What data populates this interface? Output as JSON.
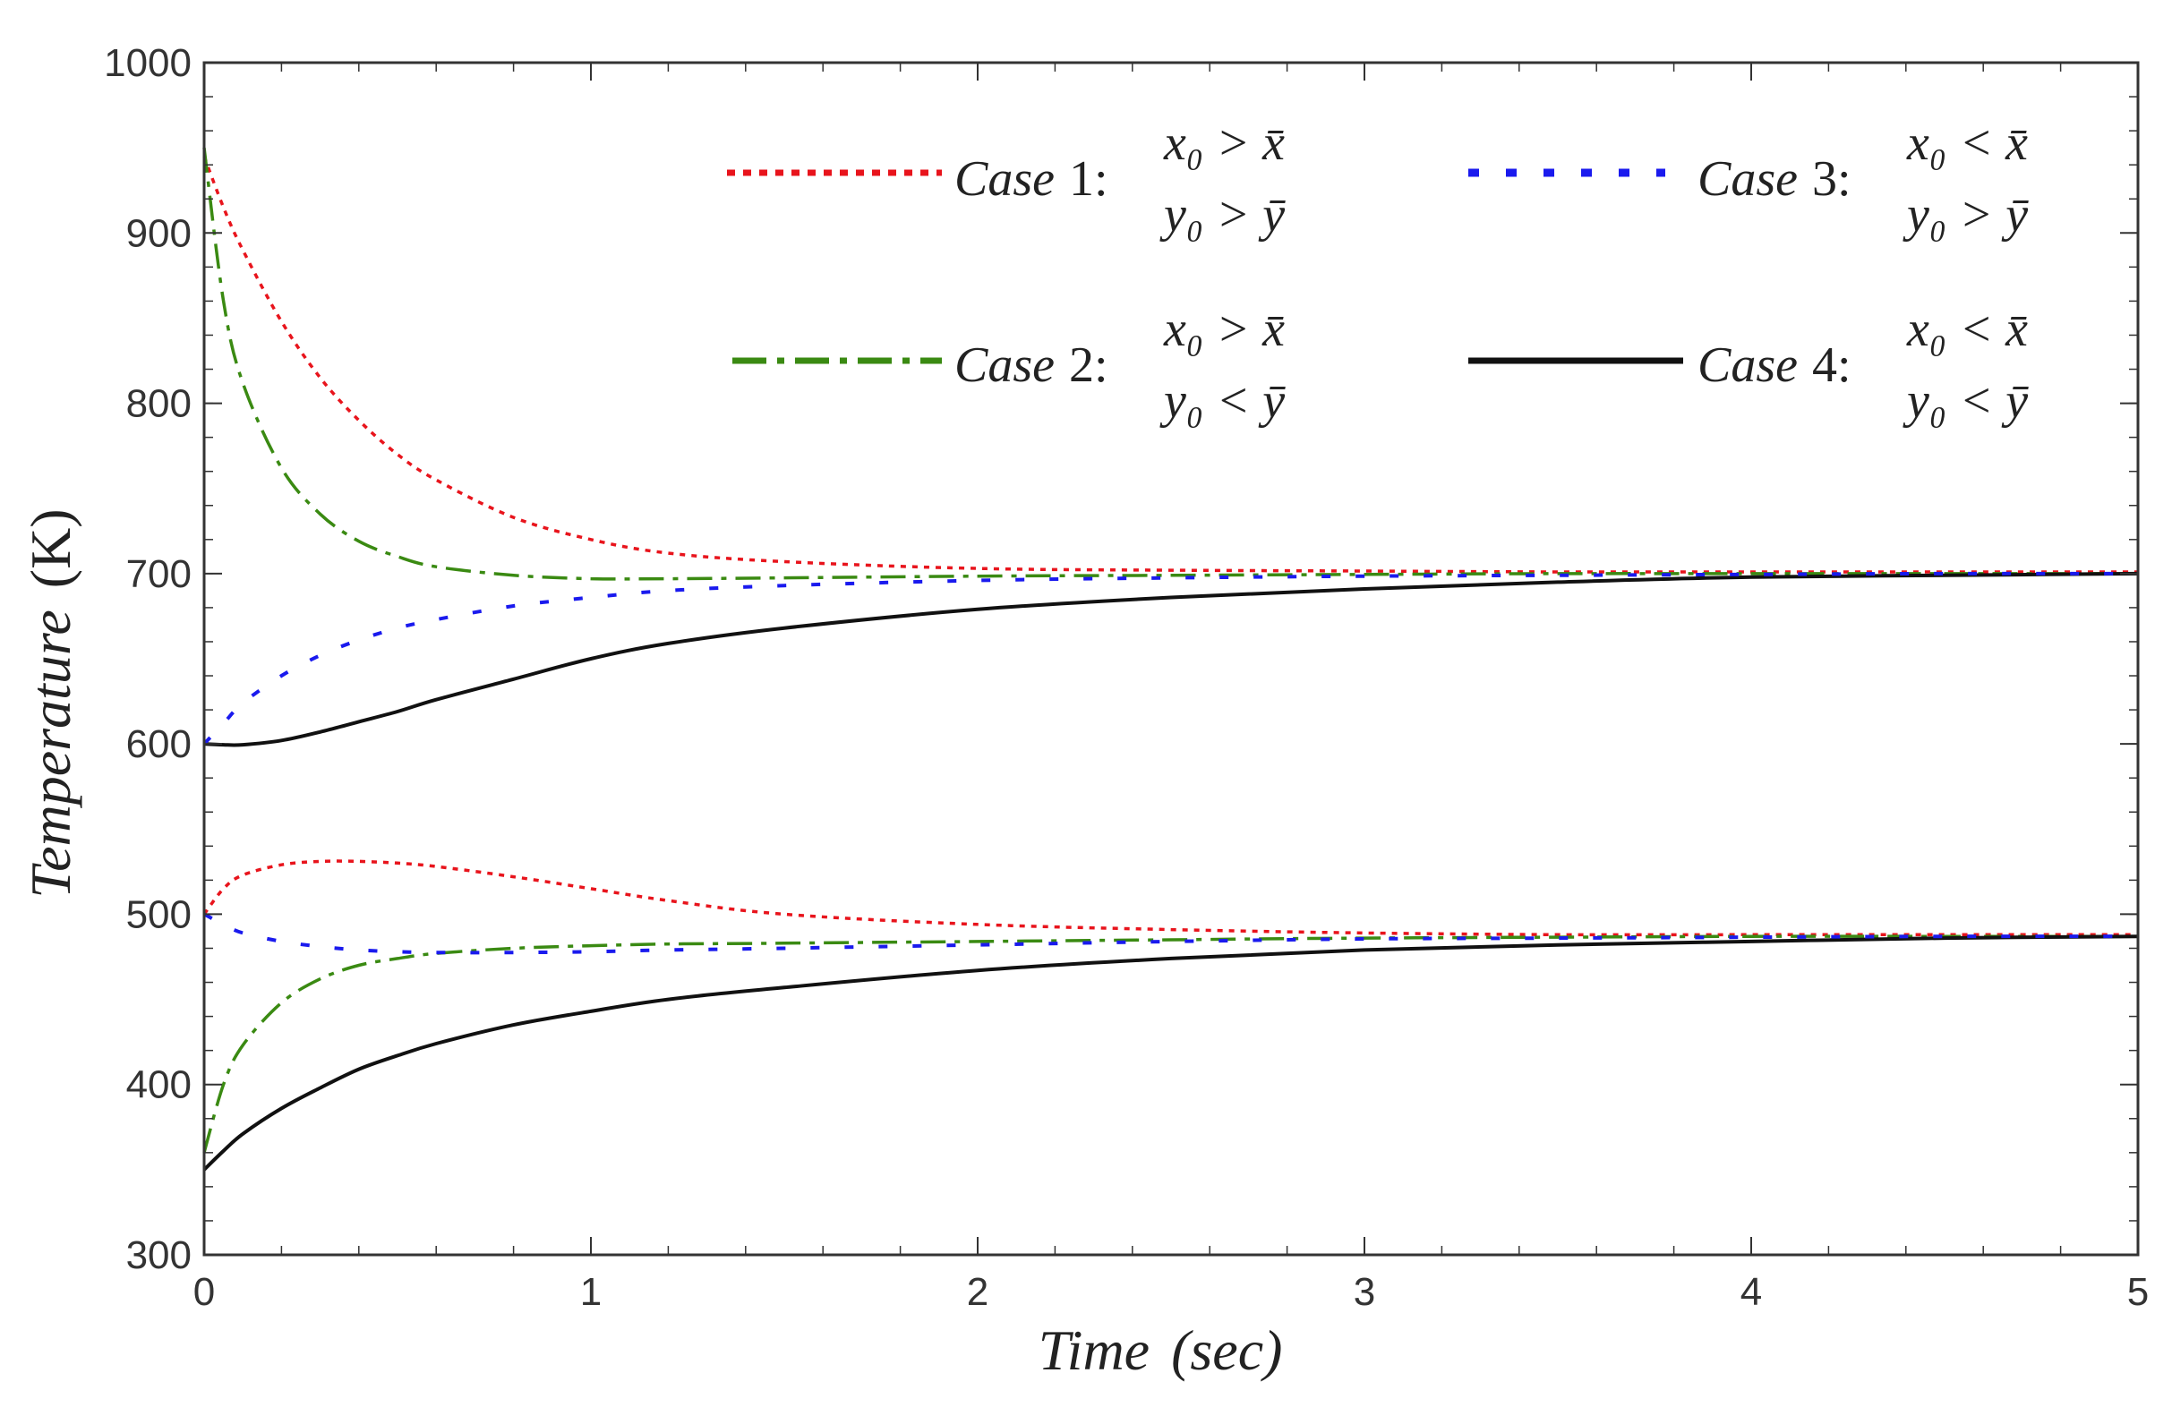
{
  "chart_data": {
    "type": "line",
    "title": "",
    "xlabel": "Time",
    "xlabel_unit": "(sec)",
    "ylabel": "Temperature",
    "ylabel_unit": "(K)",
    "xlim": [
      0,
      5
    ],
    "ylim": [
      300,
      1000
    ],
    "xticks": [
      "0",
      "1",
      "2",
      "3",
      "4",
      "5"
    ],
    "yticks": [
      "300",
      "400",
      "500",
      "600",
      "700",
      "800",
      "900",
      "1000"
    ],
    "grid": false,
    "legend_position": "top-right",
    "colors": {
      "case1": "#e8141c",
      "case2": "#3a8a12",
      "case3": "#1a1aee",
      "case4": "#111111"
    },
    "legend": [
      {
        "label_italic": "Case",
        "label_num": "1:",
        "cond_x": "x₀ > x̄",
        "cond_y": "y₀ > ȳ"
      },
      {
        "label_italic": "Case",
        "label_num": "2:",
        "cond_x": "x₀ > x̄",
        "cond_y": "y₀ < ȳ"
      },
      {
        "label_italic": "Case",
        "label_num": "3:",
        "cond_x": "x₀ < x̄",
        "cond_y": "y₀ > ȳ"
      },
      {
        "label_italic": "Case",
        "label_num": "4:",
        "cond_x": "x₀ < x̄",
        "cond_y": "y₀ < ȳ"
      }
    ],
    "x": [
      0,
      0.05,
      0.1,
      0.2,
      0.3,
      0.4,
      0.5,
      0.6,
      0.8,
      1.0,
      1.2,
      1.5,
      2.0,
      2.5,
      3.0,
      3.5,
      4.0,
      4.5,
      5.0
    ],
    "series": [
      {
        "name": "Case 1 upper",
        "case": 1,
        "values": [
          945,
          915,
          890,
          848,
          815,
          790,
          770,
          755,
          733,
          720,
          712,
          707,
          703,
          702,
          701.5,
          701,
          701,
          701,
          701
        ]
      },
      {
        "name": "Case 1 lower",
        "case": 1,
        "values": [
          500,
          515,
          523,
          529,
          531,
          531,
          530,
          528,
          522,
          515,
          508,
          500,
          494,
          491,
          489,
          488,
          488,
          488,
          488
        ]
      },
      {
        "name": "Case 2 upper",
        "case": 2,
        "values": [
          950,
          860,
          812,
          762,
          735,
          719,
          710,
          704,
          699,
          697,
          697,
          697.5,
          698.5,
          699,
          699.5,
          700,
          700,
          700,
          700
        ]
      },
      {
        "name": "Case 2 lower",
        "case": 2,
        "values": [
          360,
          400,
          423,
          448,
          462,
          470,
          474,
          477,
          480,
          481.5,
          482.5,
          483,
          484,
          485,
          486,
          486.5,
          487,
          487,
          487
        ]
      },
      {
        "name": "Case 3 upper",
        "case": 3,
        "values": [
          600,
          612,
          624,
          640,
          652,
          661,
          668,
          673,
          681,
          686,
          690,
          693,
          696,
          697.5,
          698.5,
          699,
          699.5,
          700,
          700
        ]
      },
      {
        "name": "Case 3 lower",
        "case": 3,
        "values": [
          500,
          494,
          489,
          484,
          481,
          479,
          478,
          477.5,
          477.5,
          478,
          479,
          480,
          482,
          484,
          485.5,
          486,
          486.5,
          487,
          487
        ]
      },
      {
        "name": "Case 4 upper",
        "case": 4,
        "values": [
          600,
          599.5,
          599.5,
          602,
          607,
          613,
          619,
          626,
          638,
          650,
          659,
          668,
          679,
          686,
          691,
          695,
          698,
          699,
          700
        ]
      },
      {
        "name": "Case 4 lower",
        "case": 4,
        "values": [
          350,
          361,
          371,
          386,
          398,
          409,
          417,
          424,
          435,
          443,
          450,
          457,
          467,
          474,
          479,
          482,
          484,
          486,
          487
        ]
      }
    ]
  }
}
